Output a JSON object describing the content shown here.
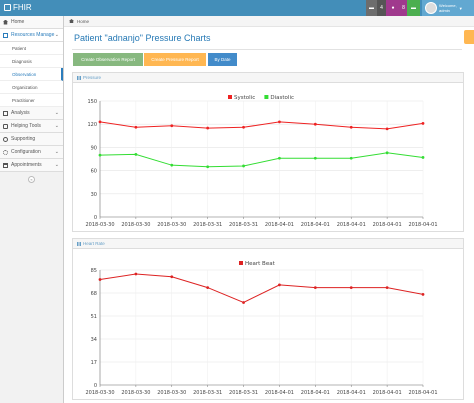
{
  "app": {
    "brand": "FHIR"
  },
  "topbar": {
    "badge_1": "4",
    "badge_2": "8",
    "user_welcome": "Welcome,",
    "user_name": "admin"
  },
  "sidebar": {
    "items": [
      {
        "label": "Home"
      },
      {
        "label": "Resources Manage"
      },
      {
        "label": "Analysis"
      },
      {
        "label": "Helping Tools"
      },
      {
        "label": "Supporting"
      },
      {
        "label": "Configuration"
      },
      {
        "label": "Appointments"
      }
    ],
    "sub_items": [
      {
        "label": "Patient"
      },
      {
        "label": "Diagnosis"
      },
      {
        "label": "Observation"
      },
      {
        "label": "Organization"
      },
      {
        "label": "Practitioner"
      }
    ]
  },
  "breadcrumb": {
    "home": "Home"
  },
  "page": {
    "title": "Patient \"adnanjo\" Pressure Charts"
  },
  "buttons": {
    "create_observation": "Create Observation Report",
    "create_pressure": "Create Pressure Report",
    "by_date": "By Date"
  },
  "panels": {
    "pressure_title": "Pressure",
    "heart_title": "Heart Rate"
  },
  "colors": {
    "topbar": "#438eb9",
    "title": "#2679b5",
    "systolic": "#ee2222",
    "diastolic": "#33dd33",
    "heart_beat": "#dd2222",
    "btn_green": "#87b87f",
    "btn_orange": "#ffb752",
    "btn_blue": "#428bca"
  },
  "chart_data": [
    {
      "type": "line",
      "x": [
        "2018-03-30",
        "2018-03-30",
        "2018-03-30",
        "2018-03-31",
        "2018-03-31",
        "2018-04-01",
        "2018-04-01",
        "2018-04-01",
        "2018-04-01",
        "2018-04-01"
      ],
      "series": [
        {
          "name": "Systolic",
          "color": "#ee2222",
          "values": [
            123,
            116,
            118,
            115,
            116,
            123,
            120,
            116,
            114,
            121
          ]
        },
        {
          "name": "Diastolic",
          "color": "#33dd33",
          "values": [
            80,
            81,
            67,
            65,
            66,
            76,
            76,
            76,
            83,
            77
          ]
        }
      ],
      "yticks": [
        0,
        30,
        60,
        90,
        120,
        150
      ],
      "ylim": [
        0,
        150
      ],
      "grid": true,
      "legend": "top"
    },
    {
      "type": "line",
      "x": [
        "2018-03-30",
        "2018-03-30",
        "2018-03-30",
        "2018-03-31",
        "2018-03-31",
        "2018-04-01",
        "2018-04-01",
        "2018-04-01",
        "2018-04-01",
        "2018-04-01"
      ],
      "series": [
        {
          "name": "Heart Beat",
          "color": "#dd2222",
          "values": [
            78,
            82,
            80,
            72,
            61,
            74,
            72,
            72,
            72,
            67
          ]
        }
      ],
      "yticks": [
        0,
        17,
        34,
        51,
        68,
        85
      ],
      "ylim": [
        0,
        85
      ],
      "grid": true,
      "legend": "top"
    }
  ]
}
